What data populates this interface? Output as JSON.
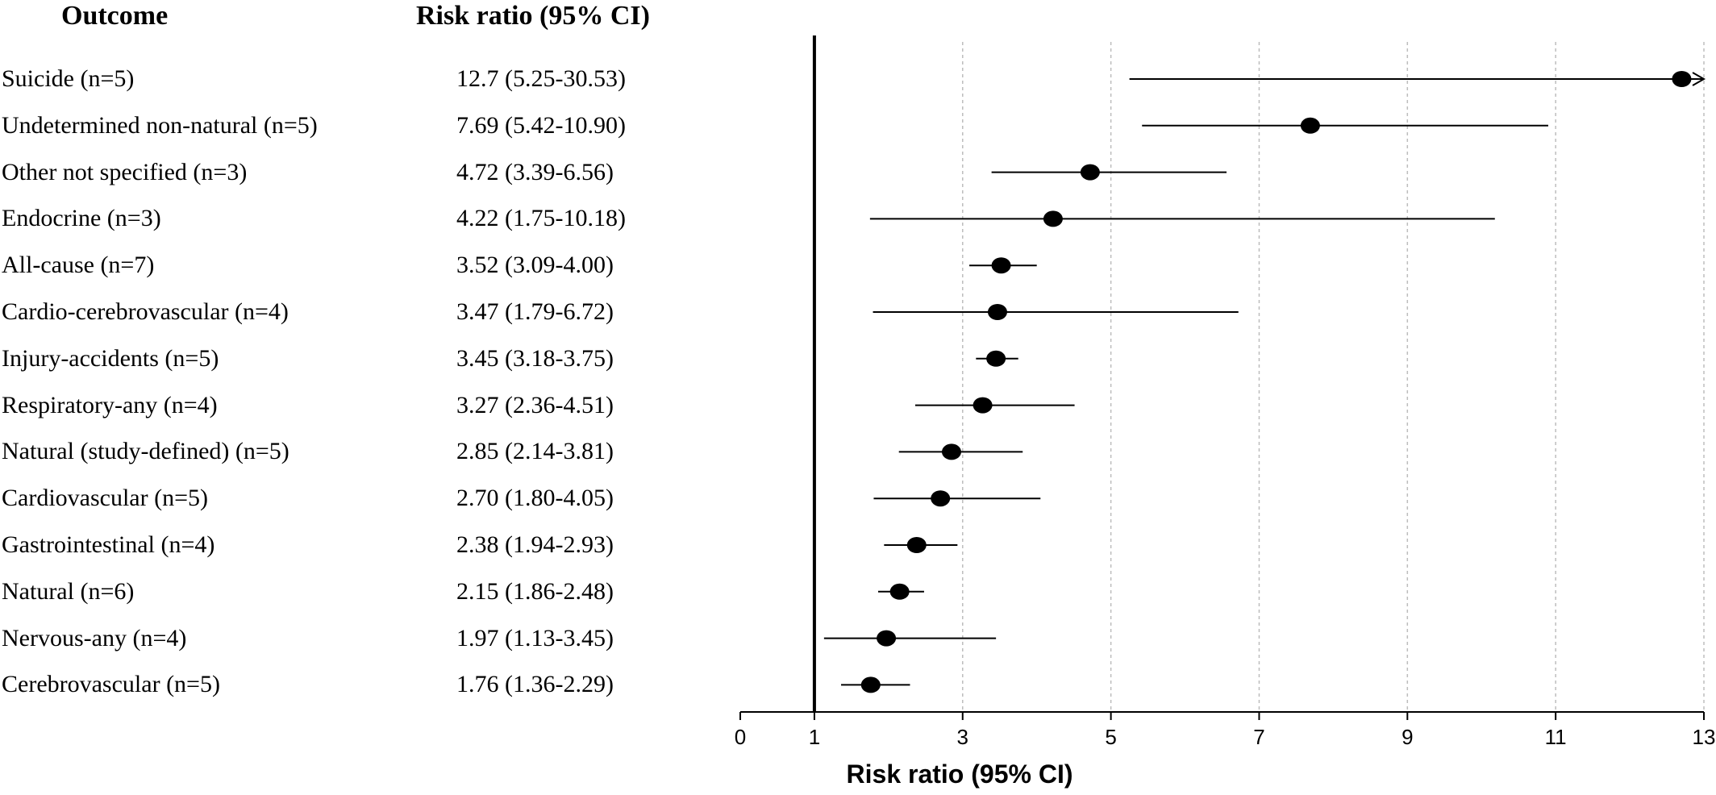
{
  "header": {
    "outcome": "Outcome",
    "risk_ratio": "Risk ratio (95% CI)"
  },
  "chart_data": {
    "type": "forest",
    "xlabel": "Risk ratio (95% CI)",
    "xlim": [
      0,
      13
    ],
    "xticks": [
      0,
      1,
      3,
      5,
      7,
      9,
      11,
      13
    ],
    "reference_line": 1,
    "grid": "vertical dotted",
    "rows": [
      {
        "label": "Suicide (n=5)",
        "text": "12.7 (5.25-30.53)",
        "rr": 12.7,
        "lo": 5.25,
        "hi": 30.53,
        "truncated": true
      },
      {
        "label": "Undetermined non-natural (n=5)",
        "text": "7.69 (5.42-10.90)",
        "rr": 7.69,
        "lo": 5.42,
        "hi": 10.9
      },
      {
        "label": "Other not specified (n=3)",
        "text": "4.72 (3.39-6.56)",
        "rr": 4.72,
        "lo": 3.39,
        "hi": 6.56
      },
      {
        "label": "Endocrine (n=3)",
        "text": "4.22 (1.75-10.18)",
        "rr": 4.22,
        "lo": 1.75,
        "hi": 10.18
      },
      {
        "label": "All-cause (n=7)",
        "text": "3.52 (3.09-4.00)",
        "rr": 3.52,
        "lo": 3.09,
        "hi": 4.0
      },
      {
        "label": "Cardio-cerebrovascular (n=4)",
        "text": "3.47 (1.79-6.72)",
        "rr": 3.47,
        "lo": 1.79,
        "hi": 6.72
      },
      {
        "label": "Injury-accidents (n=5)",
        "text": "3.45 (3.18-3.75)",
        "rr": 3.45,
        "lo": 3.18,
        "hi": 3.75
      },
      {
        "label": "Respiratory-any (n=4)",
        "text": "3.27 (2.36-4.51)",
        "rr": 3.27,
        "lo": 2.36,
        "hi": 4.51
      },
      {
        "label": "Natural (study-defined) (n=5)",
        "text": "2.85 (2.14-3.81)",
        "rr": 2.85,
        "lo": 2.14,
        "hi": 3.81
      },
      {
        "label": "Cardiovascular (n=5)",
        "text": "2.70 (1.80-4.05)",
        "rr": 2.7,
        "lo": 1.8,
        "hi": 4.05
      },
      {
        "label": "Gastrointestinal (n=4)",
        "text": "2.38 (1.94-2.93)",
        "rr": 2.38,
        "lo": 1.94,
        "hi": 2.93
      },
      {
        "label": "Natural (n=6)",
        "text": "2.15 (1.86-2.48)",
        "rr": 2.15,
        "lo": 1.86,
        "hi": 2.48
      },
      {
        "label": "Nervous-any (n=4)",
        "text": "1.97 (1.13-3.45)",
        "rr": 1.97,
        "lo": 1.13,
        "hi": 3.45
      },
      {
        "label": "Cerebrovascular (n=5)",
        "text": "1.76 (1.36-2.29)",
        "rr": 1.76,
        "lo": 1.36,
        "hi": 2.29
      }
    ]
  }
}
